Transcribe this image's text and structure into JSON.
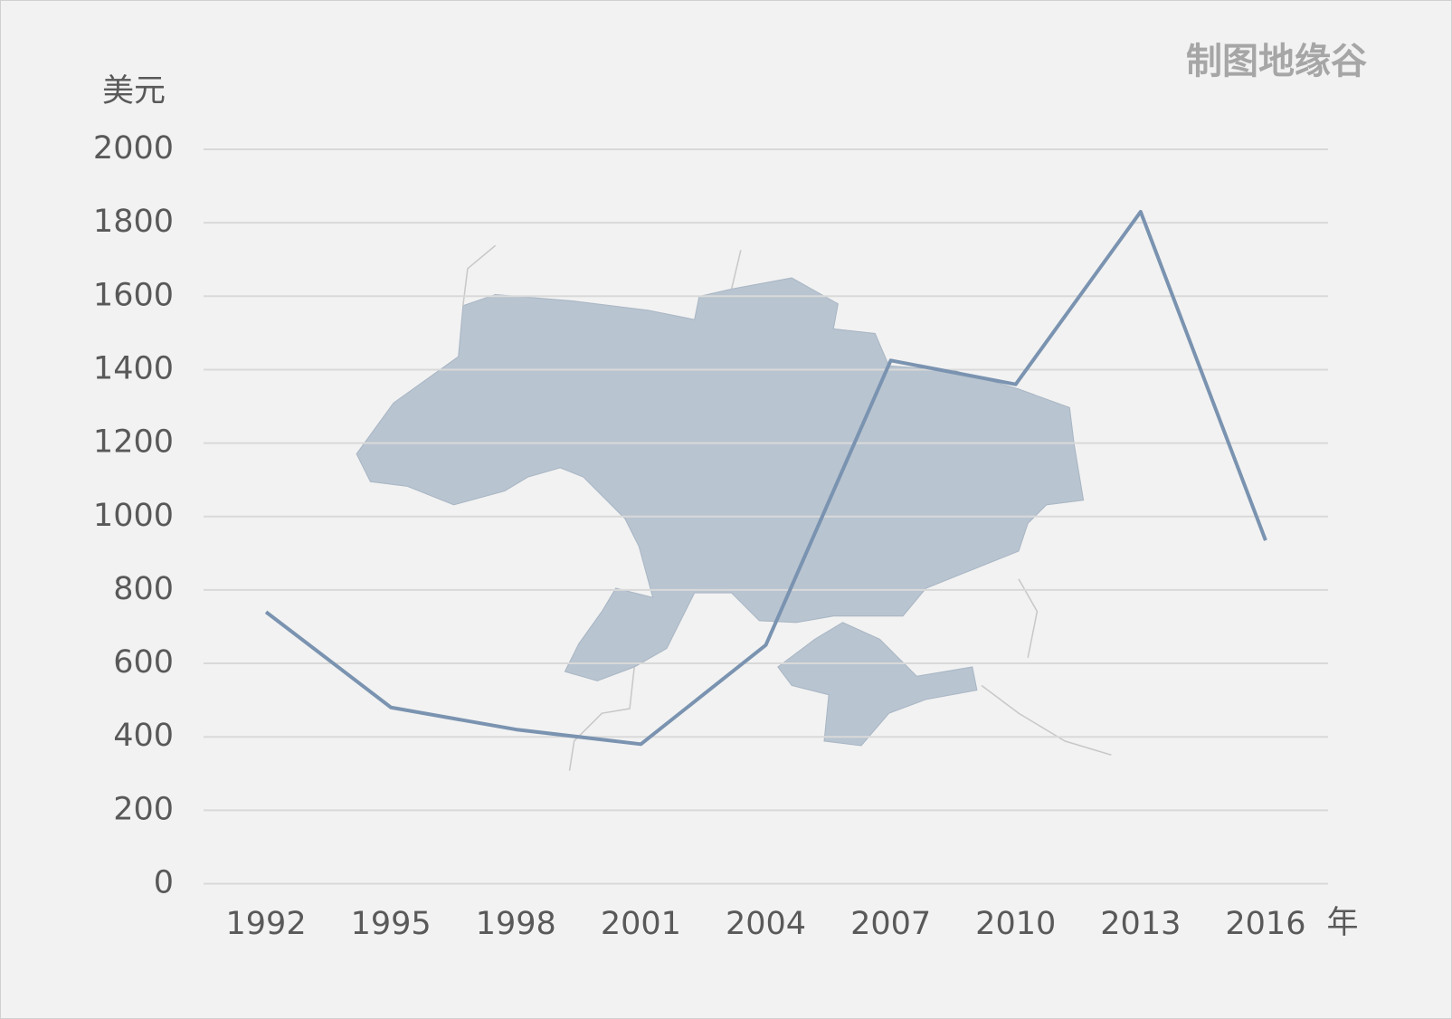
{
  "chart_data": {
    "type": "line",
    "watermark": "制图地缘谷",
    "y_label": "美元",
    "x_label": "年",
    "categories": [
      "1992",
      "1995",
      "1998",
      "2001",
      "2004",
      "2007",
      "2010",
      "2013",
      "2016"
    ],
    "values": [
      740,
      480,
      420,
      380,
      650,
      1425,
      1360,
      1830,
      935
    ],
    "color": "#7a93b0",
    "ylim": [
      0,
      2000
    ],
    "yticks": [
      0,
      200,
      400,
      600,
      800,
      1000,
      1200,
      1400,
      1600,
      1800,
      2000
    ],
    "grid": true
  }
}
